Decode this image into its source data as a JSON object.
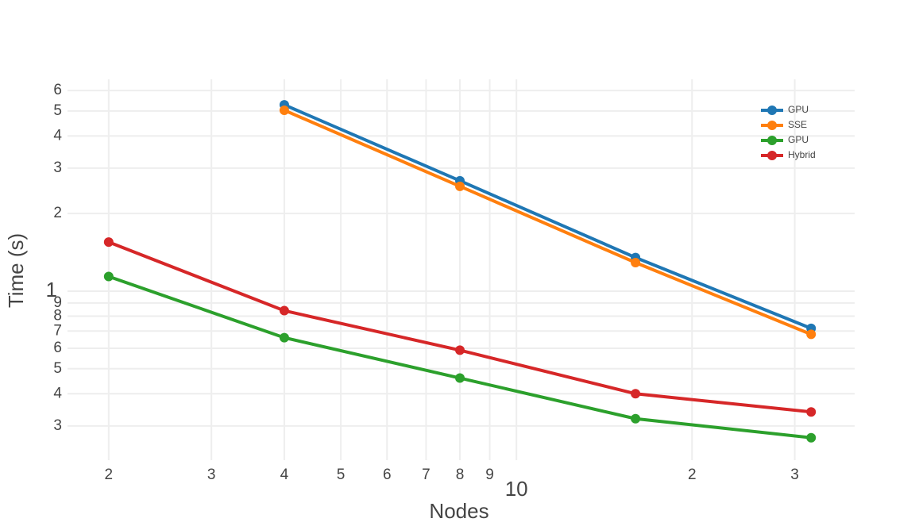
{
  "chart_data": {
    "type": "line",
    "x_label": "Nodes",
    "y_label": "Time (s)",
    "x": [
      2,
      4,
      8,
      16,
      32
    ],
    "series": [
      {
        "name": "GPU",
        "color": "#1f77b4",
        "values": [
          null,
          5.28,
          2.68,
          1.35,
          0.717
        ]
      },
      {
        "name": "SSE",
        "color": "#ff7f0e",
        "values": [
          null,
          5.03,
          2.55,
          1.29,
          0.68
        ]
      },
      {
        "name": "GPU",
        "color": "#2ca02c",
        "values": [
          1.14,
          0.66,
          0.46,
          0.32,
          0.27
        ]
      },
      {
        "name": "Hybrid",
        "color": "#d62728",
        "values": [
          1.55,
          0.84,
          0.59,
          0.4,
          0.34
        ]
      }
    ],
    "xlim": [
      1.7,
      38
    ],
    "ylim": [
      0.221,
      6.63
    ],
    "x_log": true,
    "y_log": true,
    "grid": true,
    "legend": "top-right",
    "xticks": [
      2,
      3,
      4,
      5,
      6,
      7,
      8,
      9,
      10,
      {
        "value": 20,
        "label": "2"
      },
      {
        "value": 30,
        "label": "3"
      }
    ],
    "yticks": [
      {
        "value": 0.3,
        "label": "3"
      },
      {
        "value": 0.4,
        "label": "4"
      },
      {
        "value": 0.5,
        "label": "5"
      },
      {
        "value": 0.6,
        "label": "6"
      },
      {
        "value": 0.7,
        "label": "7"
      },
      {
        "value": 0.8,
        "label": "8"
      },
      {
        "value": 0.9,
        "label": "9"
      },
      1,
      2,
      3,
      4,
      5,
      6
    ]
  }
}
